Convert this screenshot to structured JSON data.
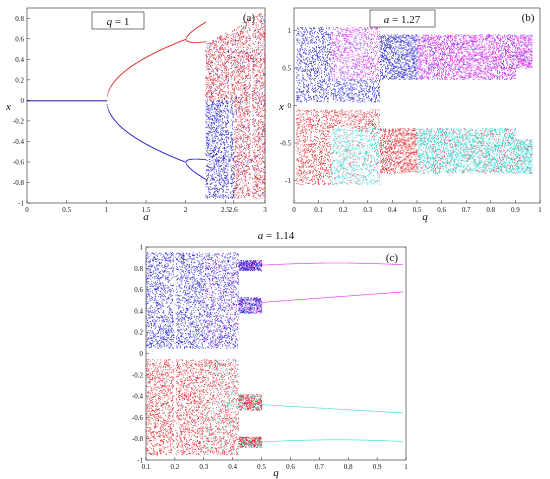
{
  "chart_data": [
    {
      "type": "scatter",
      "panel_label": "(a)",
      "param_label": "q = 1",
      "param_symbol": "q",
      "param_value": "1",
      "xlabel": "a",
      "ylabel": "x",
      "xlim": [
        0,
        3
      ],
      "ylim": [
        -1,
        0.9
      ],
      "x_ticks": [
        0,
        0.5,
        1,
        1.5,
        2,
        2.5,
        2.6,
        3
      ],
      "x_tick_labels": [
        "0",
        "0.5",
        "1",
        "1.5",
        "2",
        "2.5",
        "2.6",
        "3"
      ],
      "y_ticks": [
        -1,
        -0.8,
        -0.6,
        -0.4,
        -0.2,
        0,
        0.2,
        0.4,
        0.6,
        0.8
      ],
      "y_tick_labels": [
        "-1",
        "-0.8",
        "-0.6",
        "-0.4",
        "-0.2",
        "0",
        "0.2",
        "0.4",
        "0.6",
        "0.8"
      ],
      "series_colors": [
        "#e0202a",
        "#1a1ad0"
      ],
      "bifurcation_points": [
        1.0,
        2.0,
        2.25
      ],
      "chaos_start": 2.25
    },
    {
      "type": "scatter",
      "panel_label": "(b)",
      "param_label": "a = 1.27",
      "param_symbol": "a",
      "param_value": "1.27",
      "xlabel": "q",
      "ylabel": "x",
      "xlim": [
        0,
        1
      ],
      "ylim": [
        -1.3,
        1.3
      ],
      "x_ticks": [
        0,
        0.1,
        0.2,
        0.3,
        0.4,
        0.5,
        0.6,
        0.7,
        0.8,
        0.9,
        1
      ],
      "x_tick_labels": [
        "0",
        "0.1",
        "0.2",
        "0.3",
        "0.4",
        "0.5",
        "0.6",
        "0.7",
        "0.8",
        "0.9",
        "1"
      ],
      "y_ticks": [
        -1,
        -0.5,
        0,
        0.5,
        1
      ],
      "y_tick_labels": [
        "-1",
        "-0.5",
        "0",
        "0.5",
        "1"
      ],
      "series_colors": [
        "#1a1ad0",
        "#ee22ee",
        "#e0202a",
        "#22dddd"
      ]
    },
    {
      "type": "scatter",
      "panel_label": "(c)",
      "param_label": "a = 1.14",
      "param_symbol": "a",
      "param_value": "1.14",
      "xlabel": "q",
      "ylabel": "",
      "xlim": [
        0.1,
        1
      ],
      "ylim": [
        -1,
        1
      ],
      "x_ticks": [
        0.1,
        0.2,
        0.3,
        0.4,
        0.5,
        0.6,
        0.7,
        0.8,
        0.9,
        1
      ],
      "x_tick_labels": [
        "0.1",
        "0.2",
        "0.3",
        "0.4",
        "0.5",
        "0.6",
        "0.7",
        "0.8",
        "0.9",
        "1"
      ],
      "y_ticks": [
        -1,
        -0.8,
        -0.6,
        -0.4,
        -0.2,
        0,
        0.2,
        0.4,
        0.6,
        0.8,
        1
      ],
      "y_tick_labels": [
        "-1",
        "-0.8",
        "-0.6",
        "-0.4",
        "-0.2",
        "0",
        "0.2",
        "0.4",
        "0.6",
        "0.8",
        "1"
      ],
      "series_colors": [
        "#1a1ad0",
        "#ee22ee",
        "#e0202a",
        "#22dddd"
      ],
      "periodic_branches_upper": [
        0.83,
        0.48
      ],
      "periodic_branches_lower": [
        -0.48,
        -0.83
      ]
    }
  ]
}
